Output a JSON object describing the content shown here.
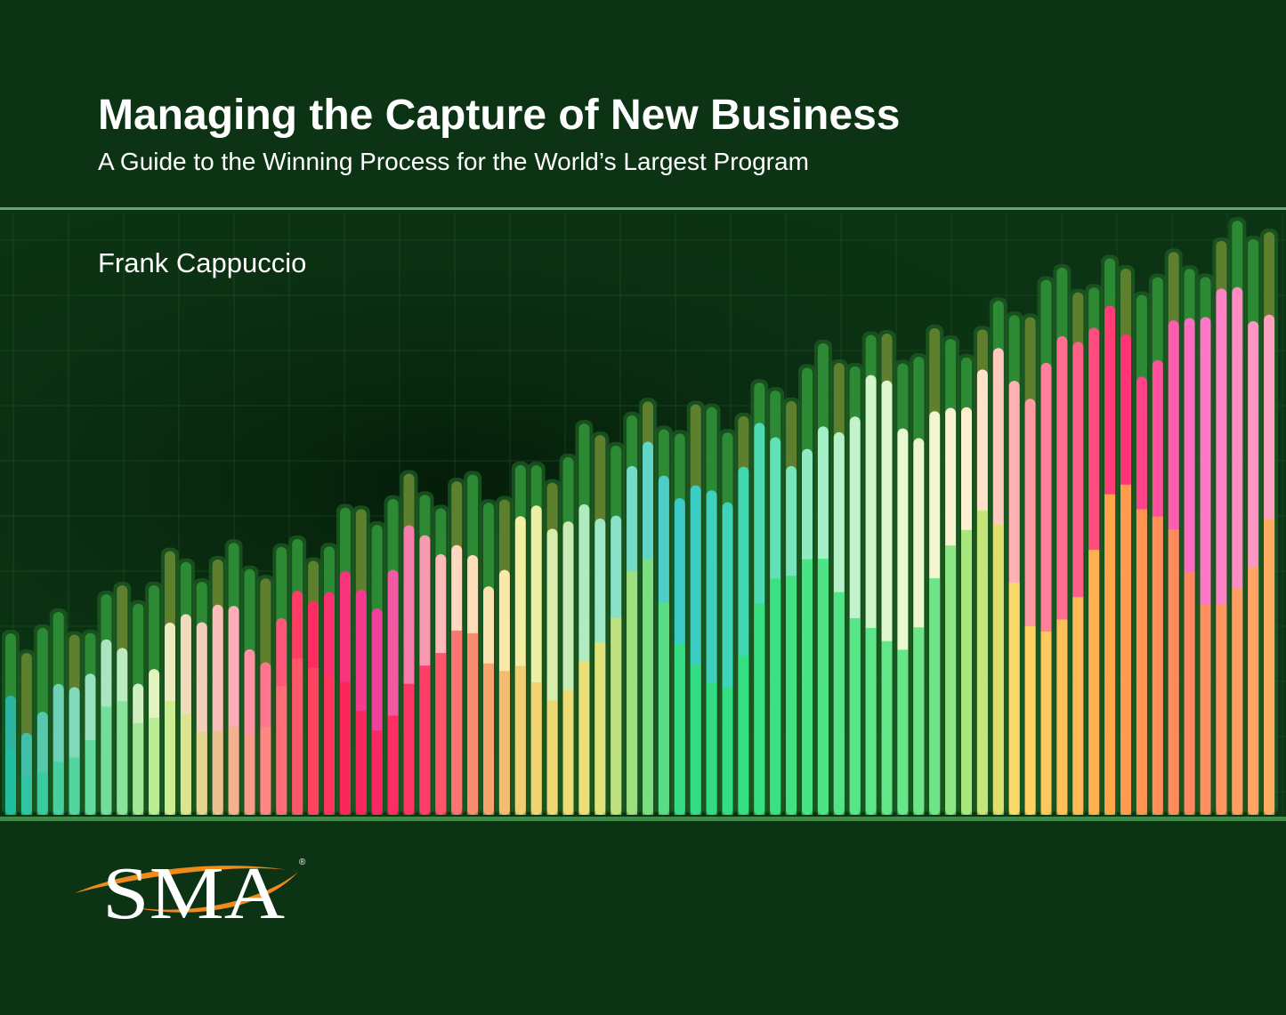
{
  "title": "Managing the Capture of New Business",
  "subtitle": "A Guide to the Winning Process for the World’s Largest Program",
  "author": "Frank Cappuccio",
  "logo": {
    "text": "SMA",
    "mark": "®"
  }
}
